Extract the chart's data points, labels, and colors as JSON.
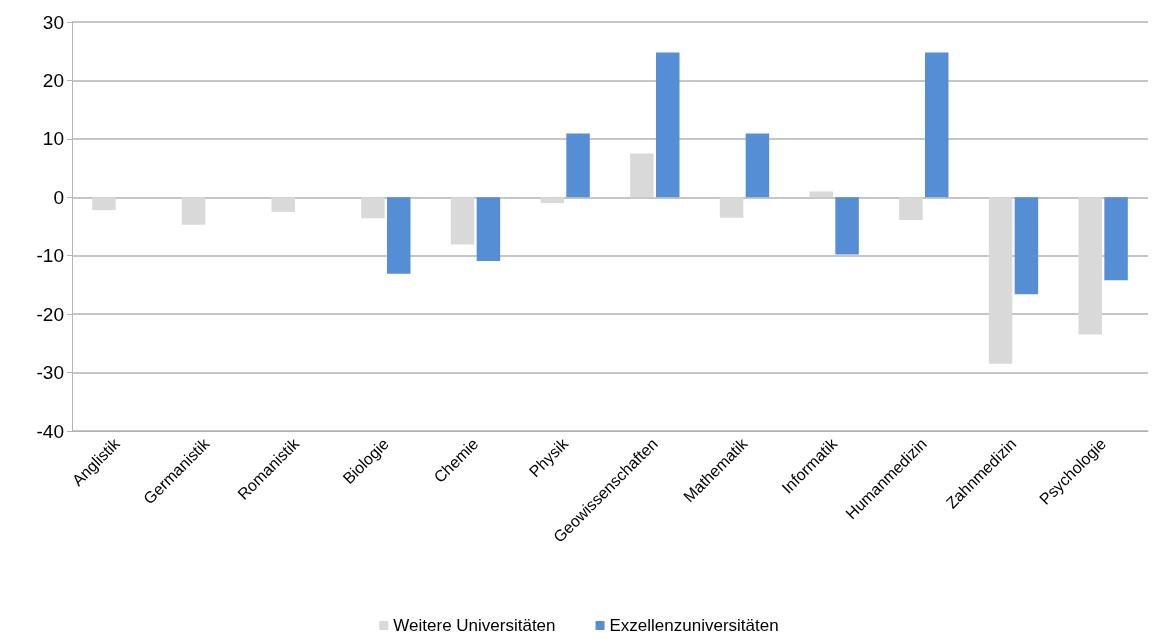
{
  "chart_data": {
    "type": "bar",
    "categories": [
      "Anglistik",
      "Germanistik",
      "Romanistik",
      "Biologie",
      "Chemie",
      "Physik",
      "Geowissenschaften",
      "Mathematik",
      "Informatik",
      "Humanmedizin",
      "Zahnmedizin",
      "Psychologie"
    ],
    "series": [
      {
        "name": "Weitere Universitäten",
        "color": "#d9d9d9",
        "values": [
          -2.2,
          -4.7,
          -2.5,
          -3.6,
          -8.1,
          -1.0,
          7.5,
          -3.5,
          1.0,
          -3.9,
          -28.5,
          -23.5
        ]
      },
      {
        "name": "Exzellenzuniversitäten",
        "color": "#558ed5",
        "values": [
          null,
          null,
          null,
          -13.1,
          -10.9,
          10.9,
          24.8,
          10.9,
          -9.8,
          24.8,
          -16.6,
          -14.2
        ]
      }
    ],
    "ylim": [
      -40,
      30
    ],
    "yticks": [
      -40,
      -30,
      -20,
      -10,
      0,
      10,
      20,
      30
    ],
    "grid": "y",
    "legend": "bottom"
  }
}
